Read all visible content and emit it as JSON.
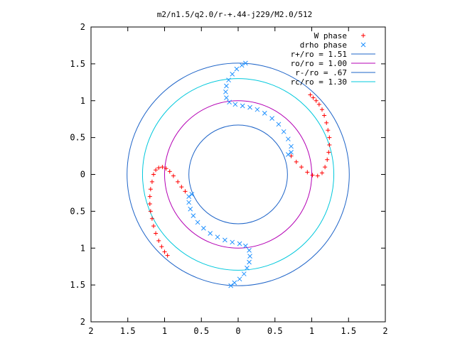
{
  "chart_data": {
    "type": "scatter",
    "title": "m2/n1.5/q2.0/r-+.44-j229/M2.0/512",
    "xlabel": "",
    "ylabel": "",
    "xlim": [
      -2,
      2
    ],
    "ylim": [
      -2,
      2
    ],
    "x_ticks": [
      "2",
      "1.5",
      "1",
      "0.5",
      "0",
      "0.5",
      "1",
      "1.5",
      "2"
    ],
    "y_ticks": [
      "2",
      "1.5",
      "1",
      "0.5",
      "0",
      "0.5",
      "1",
      "1.5",
      "2"
    ],
    "grid": false,
    "legend_position": "top-right",
    "series": [
      {
        "name": "W phase",
        "marker": "+",
        "color": "#ff0000",
        "points": [
          [
            0.98,
            1.08
          ],
          [
            1.02,
            1.04
          ],
          [
            1.06,
            1.0
          ],
          [
            1.1,
            0.95
          ],
          [
            1.14,
            0.88
          ],
          [
            1.17,
            0.8
          ],
          [
            1.2,
            0.7
          ],
          [
            1.22,
            0.6
          ],
          [
            1.24,
            0.5
          ],
          [
            1.24,
            0.4
          ],
          [
            1.23,
            0.3
          ],
          [
            1.21,
            0.2
          ],
          [
            1.18,
            0.1
          ],
          [
            1.14,
            0.02
          ],
          [
            1.08,
            -0.02
          ],
          [
            1.01,
            -0.01
          ],
          [
            0.94,
            0.03
          ],
          [
            0.86,
            0.1
          ],
          [
            0.79,
            0.17
          ],
          [
            0.72,
            0.25
          ],
          [
            -0.96,
            -1.1
          ],
          [
            -1.0,
            -1.05
          ],
          [
            -1.04,
            -0.98
          ],
          [
            -1.08,
            -0.9
          ],
          [
            -1.12,
            -0.8
          ],
          [
            -1.15,
            -0.7
          ],
          [
            -1.17,
            -0.6
          ],
          [
            -1.19,
            -0.5
          ],
          [
            -1.2,
            -0.4
          ],
          [
            -1.2,
            -0.3
          ],
          [
            -1.19,
            -0.2
          ],
          [
            -1.17,
            -0.1
          ],
          [
            -1.15,
            0.0
          ],
          [
            -1.12,
            0.06
          ],
          [
            -1.08,
            0.09
          ],
          [
            -1.03,
            0.1
          ],
          [
            -0.98,
            0.08
          ],
          [
            -0.93,
            0.04
          ],
          [
            -0.88,
            -0.02
          ],
          [
            -0.82,
            -0.1
          ],
          [
            -0.77,
            -0.17
          ],
          [
            -0.72,
            -0.23
          ]
        ]
      },
      {
        "name": "drho phase",
        "marker": "x",
        "color": "#1e90ff",
        "points": [
          [
            0.1,
            1.51
          ],
          [
            0.05,
            1.48
          ],
          [
            -0.02,
            1.43
          ],
          [
            -0.08,
            1.36
          ],
          [
            -0.13,
            1.28
          ],
          [
            -0.16,
            1.2
          ],
          [
            -0.17,
            1.12
          ],
          [
            -0.16,
            1.04
          ],
          [
            -0.12,
            0.98
          ],
          [
            -0.04,
            0.95
          ],
          [
            0.06,
            0.93
          ],
          [
            0.16,
            0.91
          ],
          [
            0.26,
            0.88
          ],
          [
            0.36,
            0.83
          ],
          [
            0.46,
            0.76
          ],
          [
            0.55,
            0.68
          ],
          [
            0.62,
            0.58
          ],
          [
            0.68,
            0.48
          ],
          [
            0.72,
            0.38
          ],
          [
            0.72,
            0.3
          ],
          [
            0.68,
            0.27
          ],
          [
            -0.1,
            -1.51
          ],
          [
            -0.05,
            -1.47
          ],
          [
            0.02,
            -1.42
          ],
          [
            0.08,
            -1.35
          ],
          [
            0.12,
            -1.27
          ],
          [
            0.15,
            -1.19
          ],
          [
            0.16,
            -1.11
          ],
          [
            0.15,
            -1.03
          ],
          [
            0.1,
            -0.97
          ],
          [
            0.02,
            -0.94
          ],
          [
            -0.08,
            -0.92
          ],
          [
            -0.18,
            -0.89
          ],
          [
            -0.28,
            -0.85
          ],
          [
            -0.38,
            -0.8
          ],
          [
            -0.47,
            -0.73
          ],
          [
            -0.55,
            -0.65
          ],
          [
            -0.61,
            -0.56
          ],
          [
            -0.65,
            -0.47
          ],
          [
            -0.67,
            -0.38
          ],
          [
            -0.67,
            -0.3
          ],
          [
            -0.63,
            -0.27
          ]
        ]
      }
    ],
    "circles": [
      {
        "name": "r+/ro = 1.51",
        "radius": 1.51,
        "color": "#1e64c8"
      },
      {
        "name": "ro/ro = 1.00",
        "radius": 1.0,
        "color": "#b400b4"
      },
      {
        "name": "r-/ro = .67",
        "radius": 0.67,
        "color": "#1e64c8"
      },
      {
        "name": "rc/ro = 1.30",
        "radius": 1.3,
        "color": "#00c8dc"
      }
    ]
  }
}
